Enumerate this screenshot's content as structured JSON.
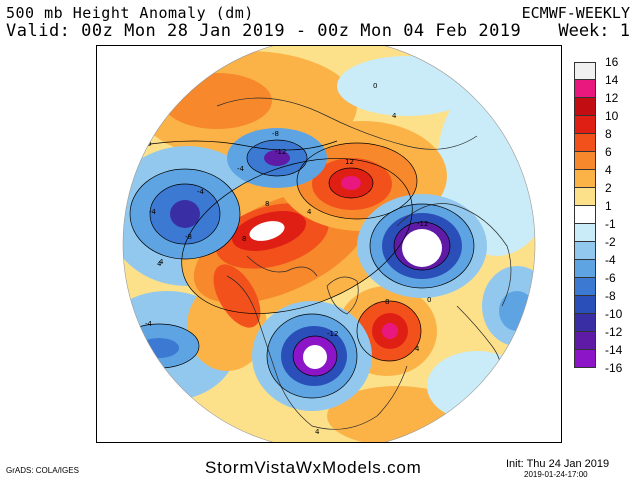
{
  "header": {
    "title": "500 mb Height Anomaly (dm)",
    "valid": "Valid: 00z Mon 28 Jan 2019 - 00z Mon 04 Feb 2019",
    "model": "ECMWF-WEEKLY",
    "week": "Week: 1"
  },
  "colorbar": {
    "levels": [
      {
        "label": "16",
        "color": "#f0f0f0"
      },
      {
        "label": "14",
        "color": "#e8187e"
      },
      {
        "label": "12",
        "color": "#c20d12"
      },
      {
        "label": "10",
        "color": "#e01f14"
      },
      {
        "label": "8",
        "color": "#f2511c"
      },
      {
        "label": "6",
        "color": "#f7882b"
      },
      {
        "label": "4",
        "color": "#fbb347"
      },
      {
        "label": "2",
        "color": "#fde08a"
      },
      {
        "label": "1",
        "color": "#ffffff"
      },
      {
        "label": "-1",
        "color": "#c9ecf8"
      },
      {
        "label": "-2",
        "color": "#92c8ee"
      },
      {
        "label": "-4",
        "color": "#5ea4e3"
      },
      {
        "label": "-6",
        "color": "#3c79d2"
      },
      {
        "label": "-8",
        "color": "#2a4fb8"
      },
      {
        "label": "-10",
        "color": "#3a2ea4"
      },
      {
        "label": "-12",
        "color": "#5f1aa6"
      },
      {
        "label": "-14",
        "color": "#8c15c8"
      },
      {
        "label": "-16",
        "color": ""
      }
    ]
  },
  "map_labels": {
    "contour_labels": [
      "0",
      "4",
      "-8",
      "-12",
      "12",
      "8",
      "4",
      "-4",
      "-8",
      "-12",
      "8",
      "4",
      "0",
      "-4",
      "-12",
      "8",
      "4",
      "4",
      "-4",
      "4",
      "-4",
      "0"
    ]
  },
  "footer": {
    "grads": "GrADS: COLA/IGES",
    "site": "StormVistaWxModels.com",
    "init": "Init: Thu 24 Jan 2019",
    "run": "2019-01-24-17:00"
  }
}
